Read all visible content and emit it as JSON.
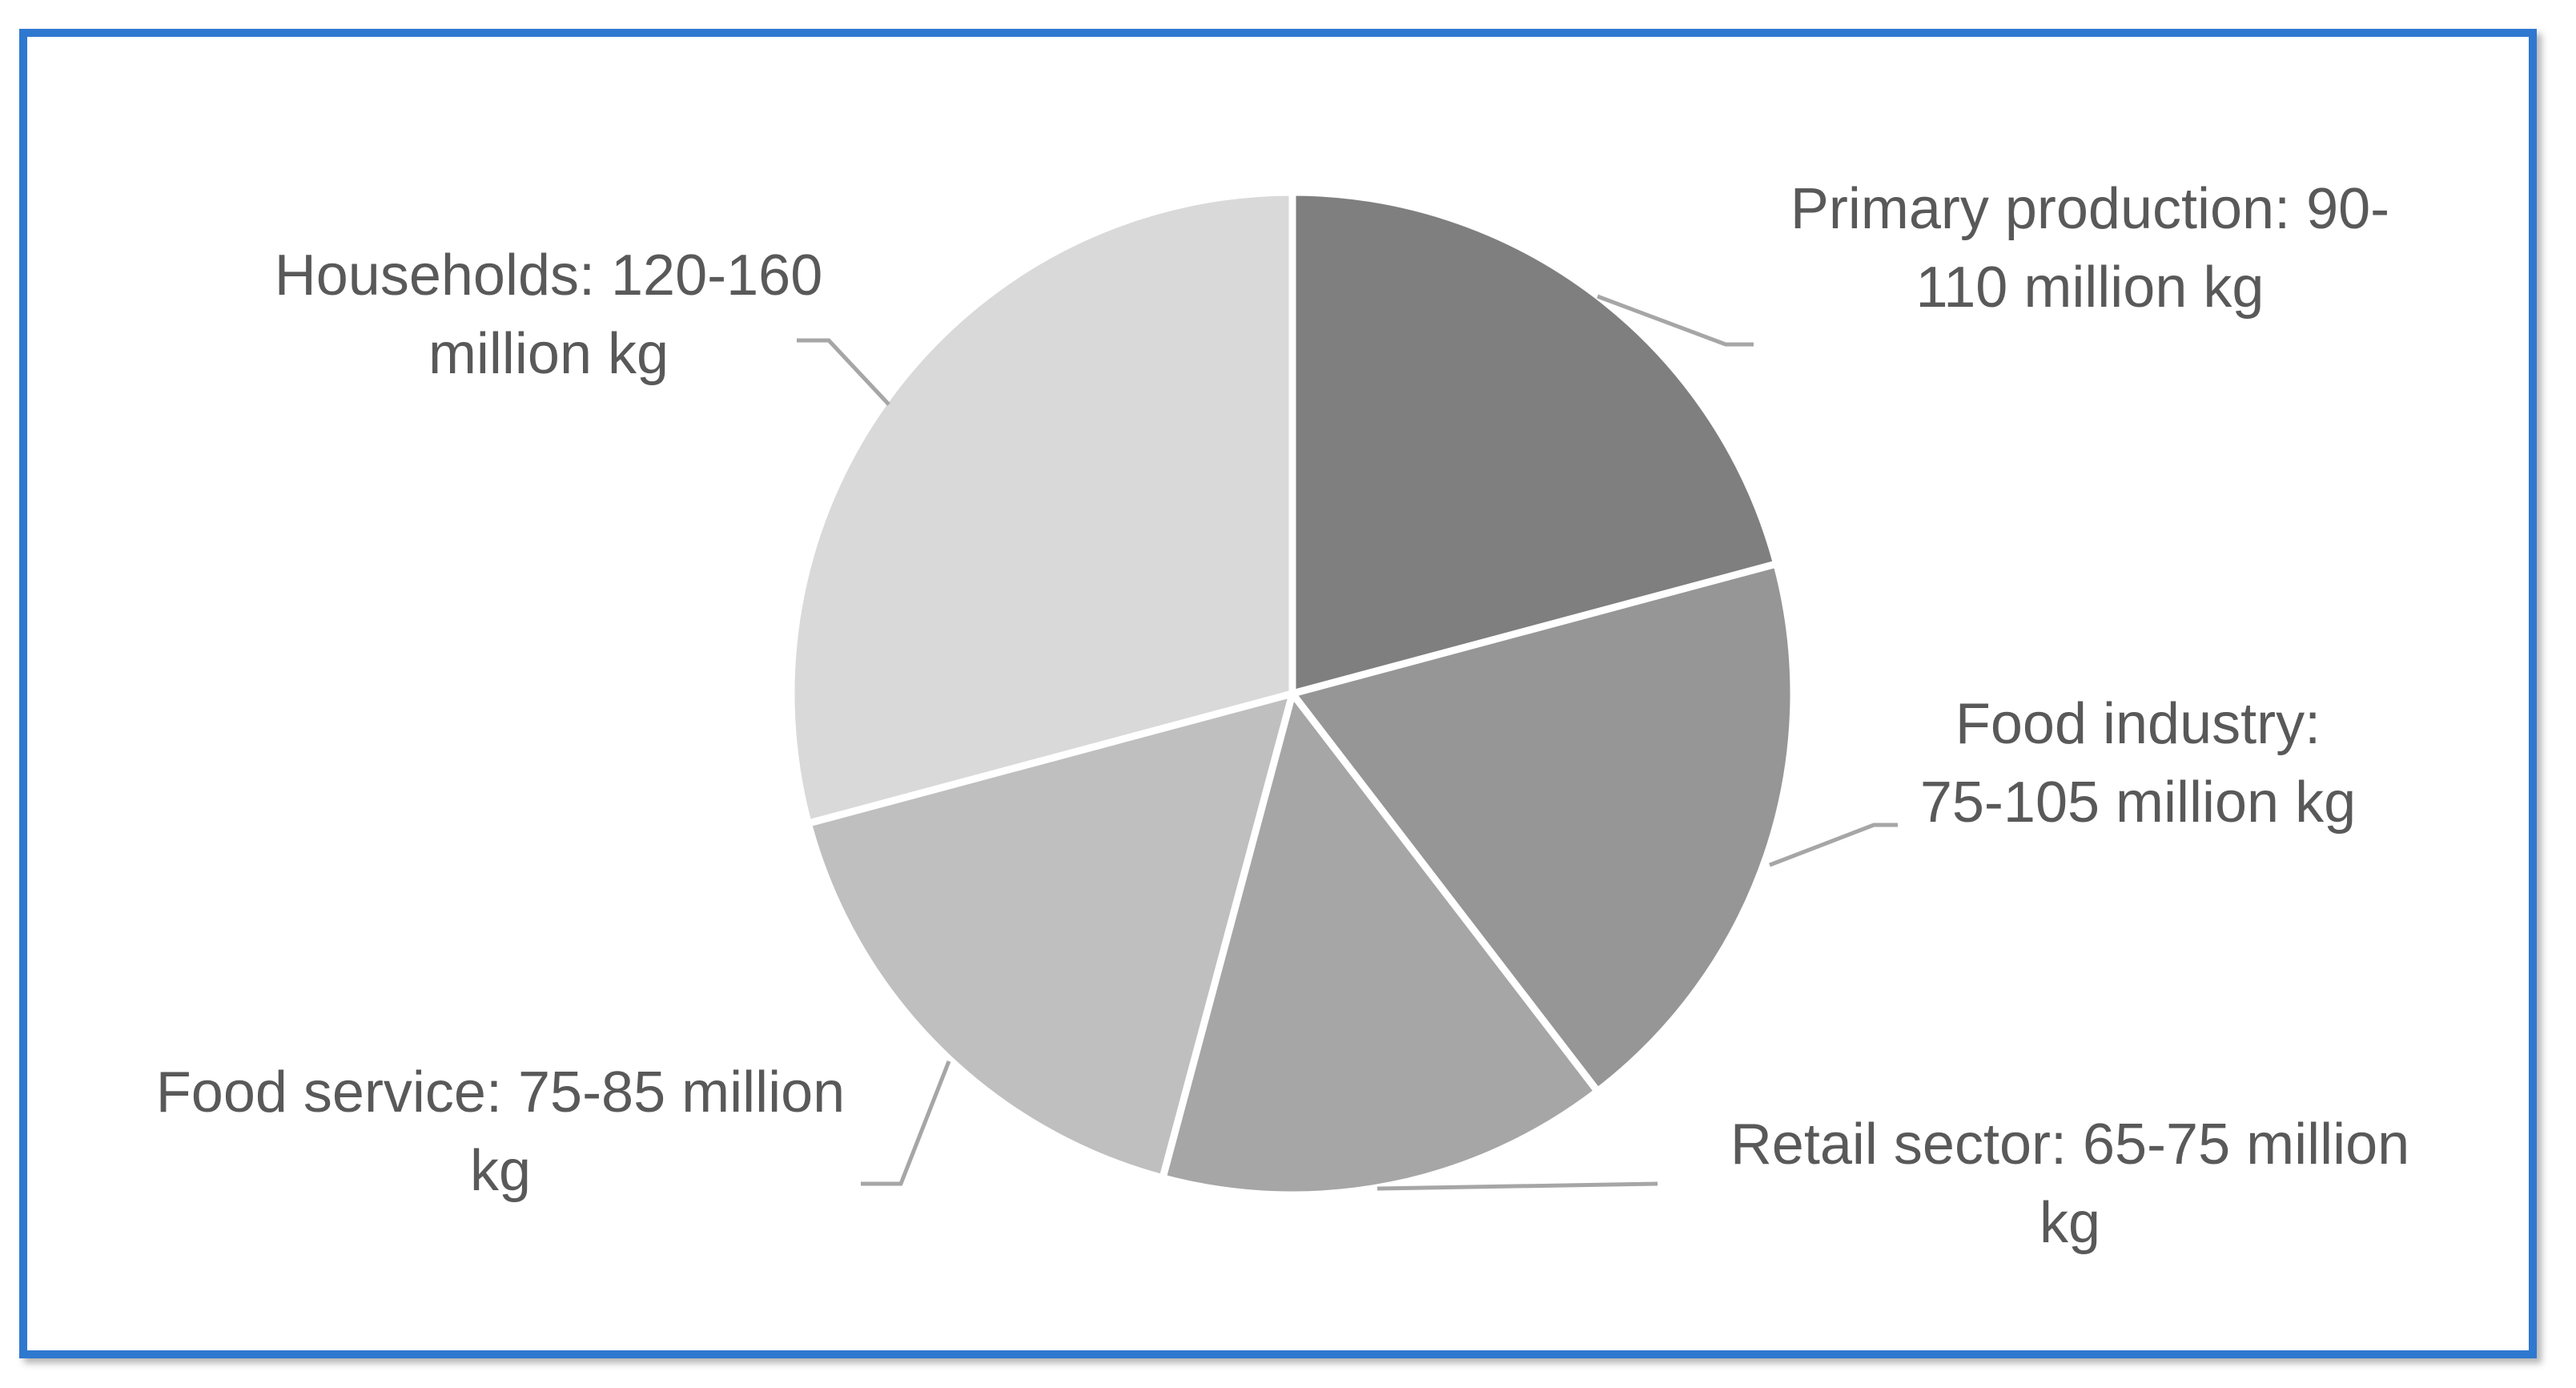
{
  "chart_data": {
    "type": "pie",
    "title": "",
    "unit": "million kg",
    "slices": [
      {
        "name": "Primary production",
        "label_lines": [
          "Primary production: 90-",
          "110 million kg"
        ],
        "range": [
          90,
          110
        ],
        "value": 100,
        "color": "#7f7f7f"
      },
      {
        "name": "Food industry",
        "label_lines": [
          "Food industry:",
          "75-105 million kg"
        ],
        "range": [
          75,
          105
        ],
        "value": 90,
        "color": "#969696"
      },
      {
        "name": "Retail sector",
        "label_lines": [
          "Retail  sector: 65-75 million",
          "kg"
        ],
        "range": [
          65,
          75
        ],
        "value": 70,
        "color": "#a6a6a6"
      },
      {
        "name": "Food service",
        "label_lines": [
          "Food service: 75-85 million",
          "kg"
        ],
        "range": [
          75,
          85
        ],
        "value": 80,
        "color": "#bfbfbf"
      },
      {
        "name": "Households",
        "label_lines": [
          "Households: 120-160",
          "million kg"
        ],
        "range": [
          120,
          160
        ],
        "value": 140,
        "color": "#d9d9d9"
      }
    ],
    "start_angle_deg": 0,
    "direction": "clockwise",
    "legend": "none",
    "data_labels": "outside with leader lines"
  },
  "style": {
    "frame_border_color": "#2f78d0",
    "label_color": "#595959",
    "leader_color": "#a6a6a6",
    "slice_separator_color": "#ffffff"
  }
}
